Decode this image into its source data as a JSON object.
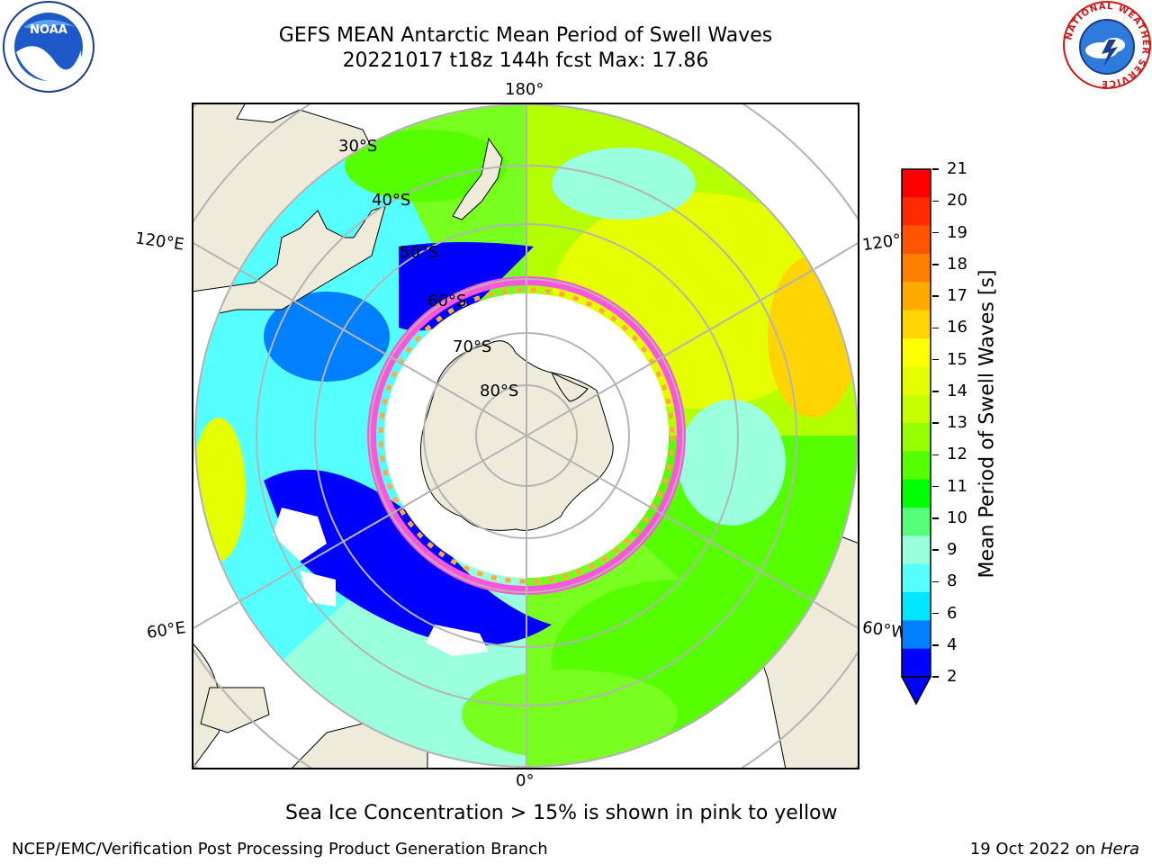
{
  "header": {
    "title_line1": "GEFS MEAN Antarctic Mean Period of Swell Waves",
    "title_line2": "20221017 t18z 144h fcst   Max: 17.86"
  },
  "logos": {
    "noaa_text": "NOAA",
    "nws_text": "NATIONAL WEATHER SERVICE"
  },
  "map": {
    "longitude_labels": {
      "top": "180°",
      "bottom": "0°",
      "upper_left": "120°E",
      "upper_right": "120°W",
      "lower_left": "60°E",
      "lower_right": "60°W"
    },
    "latitude_labels": [
      "30°S",
      "40°S",
      "50°S",
      "60°S",
      "70°S",
      "80°S"
    ]
  },
  "colorbar": {
    "label": "Mean Period of Swell Waves [s]",
    "ticks": [
      "21",
      "20",
      "19",
      "18",
      "17",
      "16",
      "15",
      "14",
      "13",
      "12",
      "11",
      "10",
      "9",
      "8",
      "6",
      "4",
      "2"
    ],
    "colors": [
      "#ff0000",
      "#ff2a00",
      "#ff5500",
      "#ff8000",
      "#ffaa00",
      "#ffd400",
      "#ffff00",
      "#e6ff00",
      "#c8ff00",
      "#96ff00",
      "#55ff00",
      "#00ff00",
      "#55ff77",
      "#99ffdd",
      "#55ffff",
      "#00e6ff",
      "#0080ff",
      "#0000ff"
    ]
  },
  "caption": "Sea Ice Concentration > 15% is shown in pink to yellow",
  "footer": {
    "left": "NCEP/EMC/Verification Post Processing Product Generation Branch",
    "right_prefix": "19 Oct 2022 on ",
    "right_host": "Hera"
  }
}
